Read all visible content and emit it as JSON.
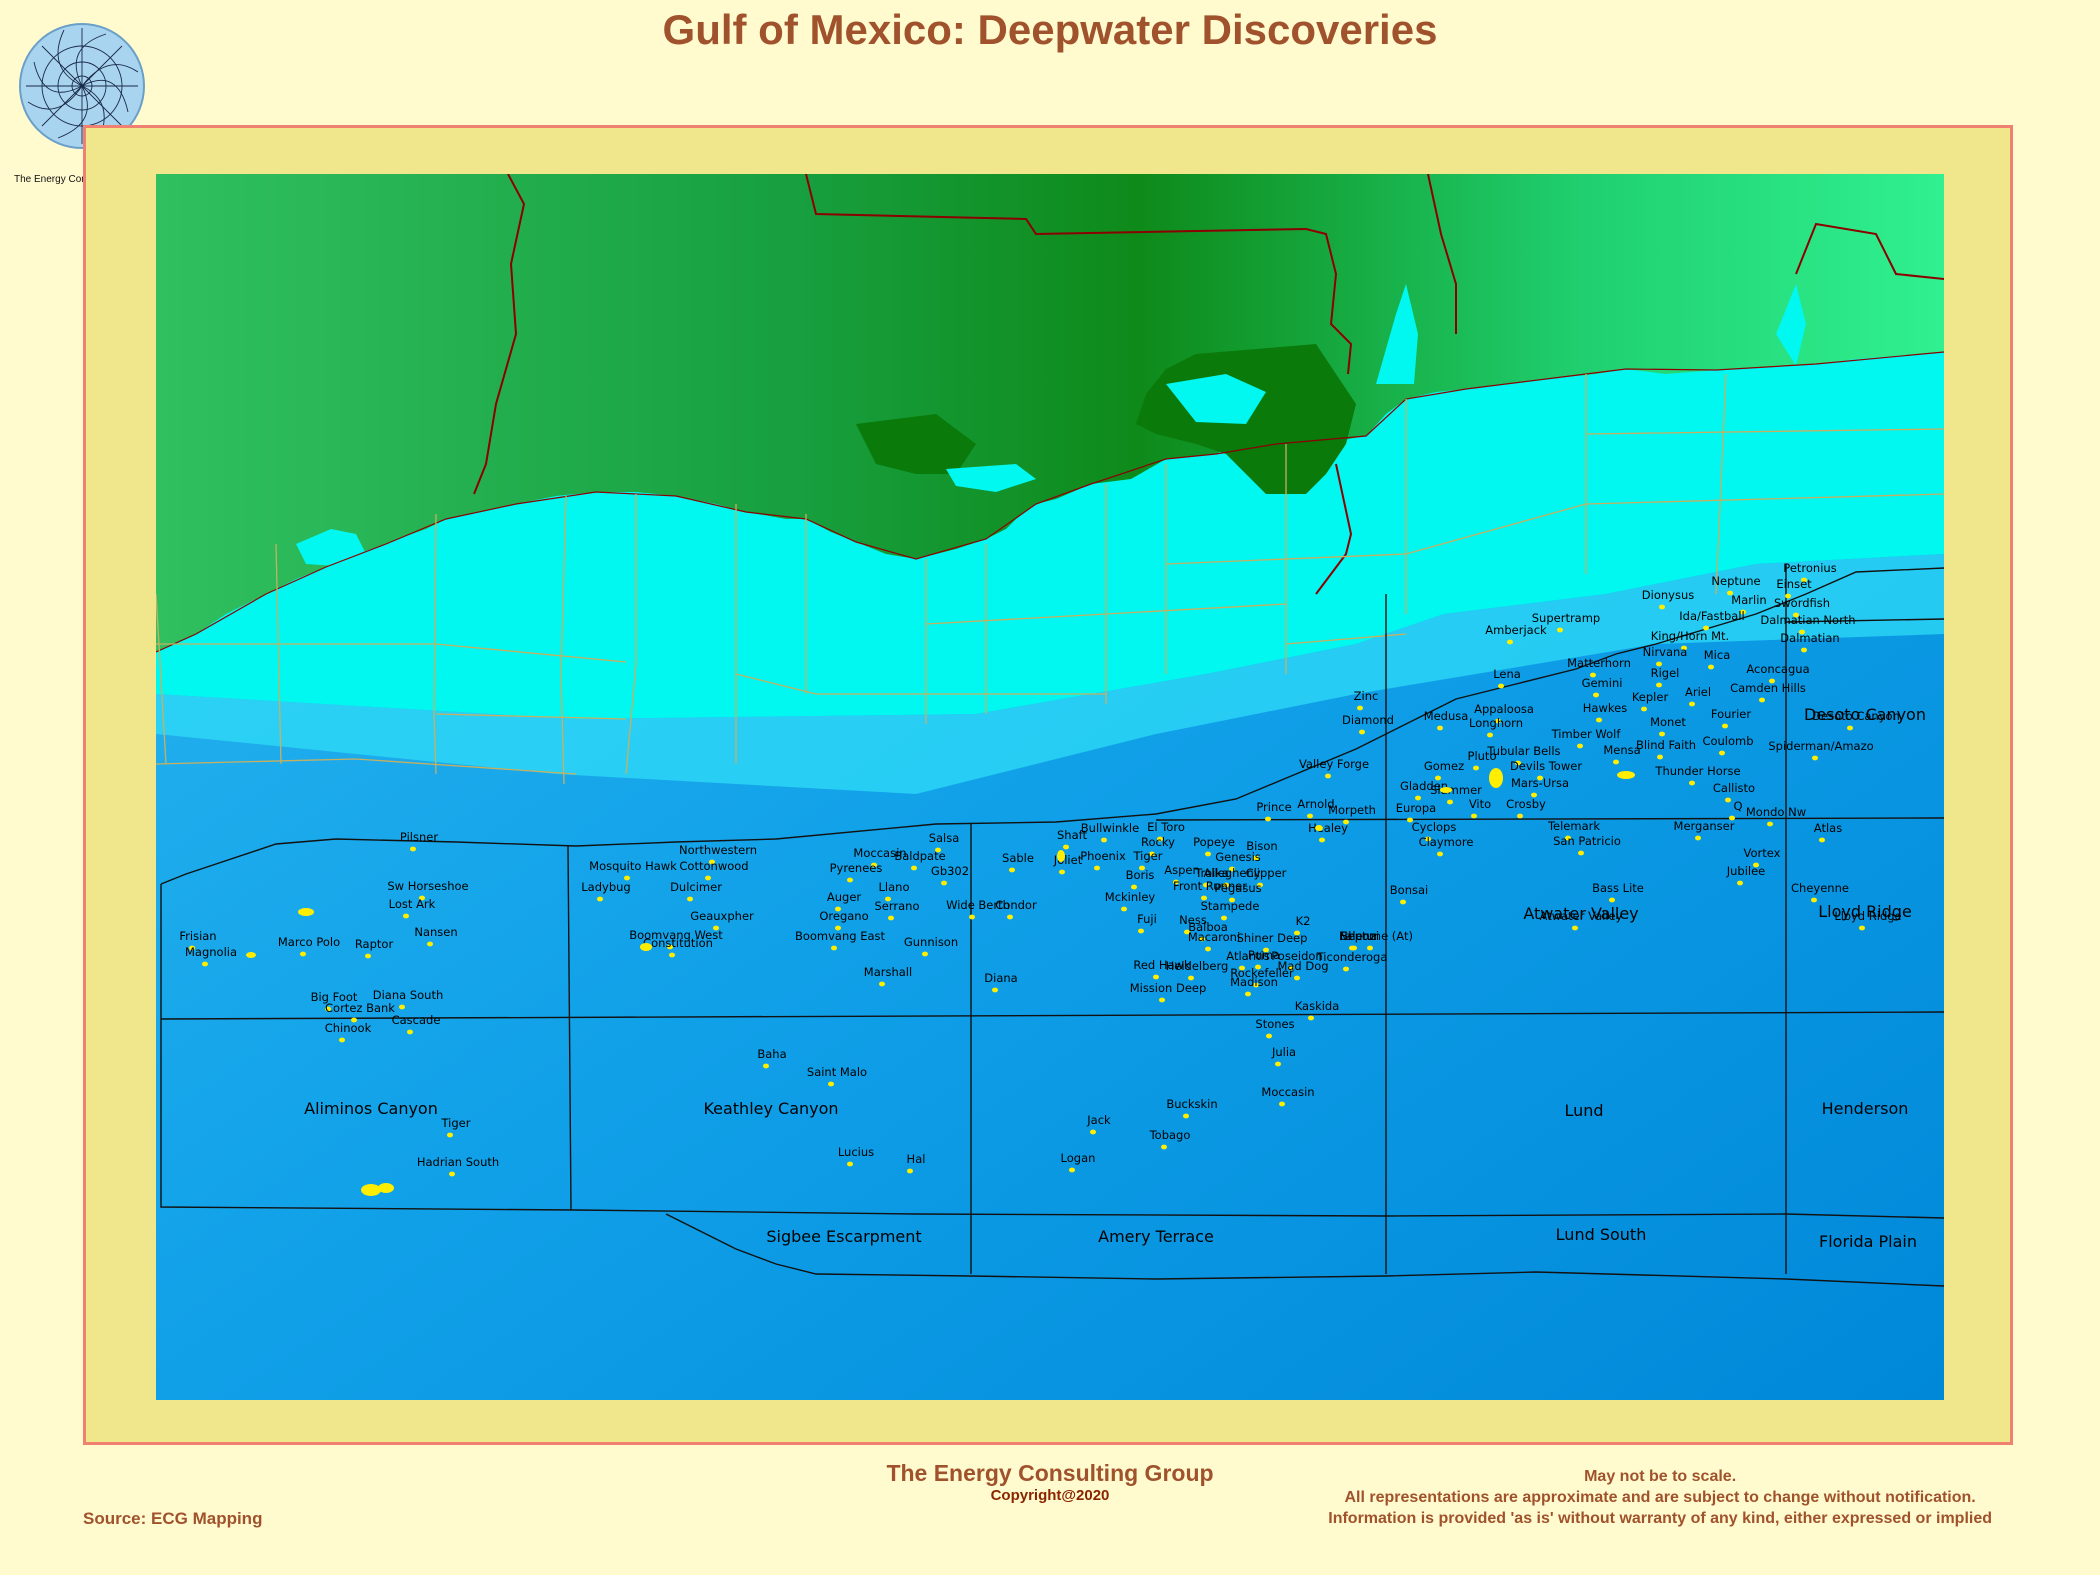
{
  "title": "Gulf of Mexico:  Deepwater Discoveries",
  "logo": {
    "text": "The Energy Consulting Group"
  },
  "colors": {
    "background": "#fffbcf",
    "frame": "#f0e68c",
    "frame_border": "#f08070",
    "title": "#a0522d",
    "field": "#ffee00",
    "land_dark": "#0a7a0a",
    "land_light": "#20e070",
    "shelf": "#00ffff",
    "deep": "#0090e0"
  },
  "map": {
    "areas": [
      "Aliminos Canyon",
      "Keathley Canyon",
      "Lund",
      "Henderson",
      "Desoto Canyon",
      "Lloyd Ridge",
      "Atwater Valley",
      "Sigbee Escarpment",
      "Amery Terrace",
      "Lund South",
      "Florida Plain"
    ],
    "fields": [
      "Petronius",
      "Neptune",
      "Einset",
      "Dionysus",
      "Marlin",
      "Swordfish",
      "Ida/Fastball",
      "Dalmatian North",
      "Supertramp",
      "Amberjack",
      "King/Horn Mt.",
      "Dalmatian",
      "Nirvana",
      "Mica",
      "Matterhorn",
      "Aconcagua",
      "Rigel",
      "Gemini",
      "Lena",
      "Camden Hills",
      "Ariel",
      "Kepler",
      "Zinc",
      "Appaloosa",
      "Hawkes",
      "Fourier",
      "Desoto Canyon",
      "Medusa",
      "Diamond",
      "Longhorn",
      "Monet",
      "Timber Wolf",
      "Coulomb",
      "Blind Faith",
      "Spiderman/Amazo",
      "Tubular Bells",
      "Mensa",
      "Pluto",
      "Valley Forge",
      "Gomez",
      "Devils Tower",
      "Thunder Horse",
      "Mars-Ursa",
      "Callisto",
      "Gladden",
      "Slammer",
      "Vito",
      "Crosby",
      "Arnold",
      "Prince",
      "Morpeth",
      "Europa",
      "Q",
      "Mondo Nw",
      "Healey",
      "Cyclops",
      "Telemark",
      "Merganser",
      "Atlas",
      "Bullwinkle",
      "El Toro",
      "Shaft",
      "Salsa",
      "Pilsner",
      "Rocky",
      "Popeye",
      "Bison",
      "Claymore",
      "San Patricio",
      "Northwestern",
      "Moccasin",
      "Baldpate",
      "Tiger",
      "Genesis",
      "Vortex",
      "Sable",
      "Joliet",
      "Phoenix",
      "Mosquito Hawk",
      "Cottonwood",
      "Pyrenees",
      "Gb302",
      "Aspen",
      "Troika",
      "Allegheny",
      "Clipper",
      "Jubilee",
      "Boris",
      "Sw Horseshoe",
      "Ladybug",
      "Dulcimer",
      "Llano",
      "Front Runner",
      "Pegasus",
      "Bonsai",
      "Bass Lite",
      "Cheyenne",
      "Lost Ark",
      "Auger",
      "Serrano",
      "Wide Berth",
      "Condor",
      "Mckinley",
      "Stampede",
      "Atwater Valley",
      "Lloyd Ridge",
      "Geauxpher",
      "Oregano",
      "Fuji",
      "Ness",
      "K2",
      "Balboa",
      "Nansen",
      "Shenzi",
      "Neptune (At)",
      "Falcon",
      "Boomvang West",
      "Boomvang East",
      "Gunnison",
      "Macaroni",
      "Shiner Deep",
      "Frisian",
      "Marco Polo",
      "Raptor",
      "Constitution",
      "Poseidon",
      "Atlantis",
      "Ticonderoga",
      "Magnolia",
      "Red Hawk",
      "Puma",
      "Mad Dog",
      "Heidelberg",
      "Marshall",
      "Diana",
      "Rockefeller",
      "Madison",
      "Mission Deep",
      "Diana South",
      "Big Foot",
      "Cortez Bank",
      "Cascade",
      "Kaskida",
      "Chinook",
      "Stones",
      "Baha",
      "Julia",
      "Saint Malo",
      "Moccasin",
      "Buckskin",
      "Tiger",
      "Jack",
      "Tobago",
      "Lucius",
      "Hal",
      "Hadrian South",
      "Logan"
    ]
  },
  "footer": {
    "company": "The Energy Consulting Group",
    "copyright": "Copyright@2020",
    "source": "Source: ECG Mapping",
    "disclaimer_1": "May not be to scale.",
    "disclaimer_2": "All representations are approximate and are subject to change without notification.",
    "disclaimer_3": "Information is provided 'as is' without warranty of any kind, either expressed or implied"
  }
}
